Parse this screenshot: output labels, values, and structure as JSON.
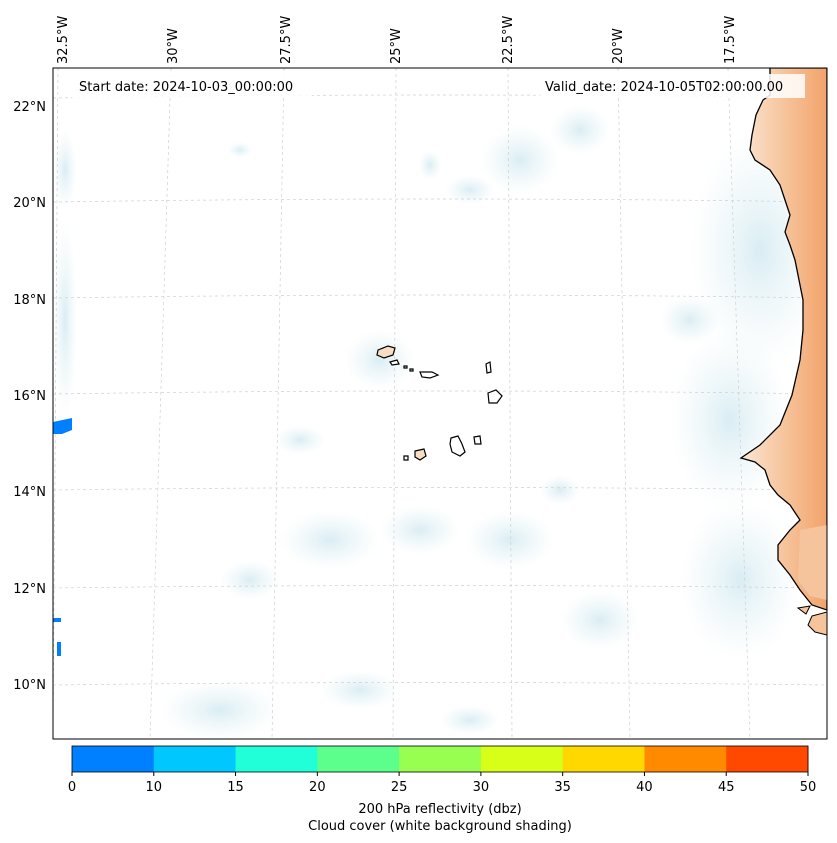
{
  "map": {
    "start_date_text": "Start date: 2024-10-03_00:00:00",
    "valid_date_text": "Valid_date: 2024-10-05T02:00:00.00",
    "lon_labels": [
      "32.5°W",
      "30°W",
      "27.5°W",
      "25°W",
      "22.5°W",
      "20°W",
      "17.5°W"
    ],
    "lat_labels": [
      "22°N",
      "20°N",
      "18°N",
      "16°N",
      "14°N",
      "12°N",
      "10°N"
    ],
    "colors": {
      "land": "#f8dcc4",
      "land_strong": "#f2a36a",
      "cloud": "#dbeef3",
      "coast": "#000000",
      "grid": "#c8c8c8"
    }
  },
  "colorbar": {
    "ticks": [
      "0",
      "10",
      "15",
      "20",
      "25",
      "30",
      "35",
      "40",
      "45",
      "50"
    ],
    "colors": [
      "#0080ff",
      "#00c8ff",
      "#20ffd8",
      "#5cff8c",
      "#98ff50",
      "#d8ff18",
      "#ffd800",
      "#ff8a00",
      "#ff4800"
    ],
    "label_line1": "200 hPa reflectivity (dbz)",
    "label_line2": "Cloud cover (white background shading)"
  }
}
